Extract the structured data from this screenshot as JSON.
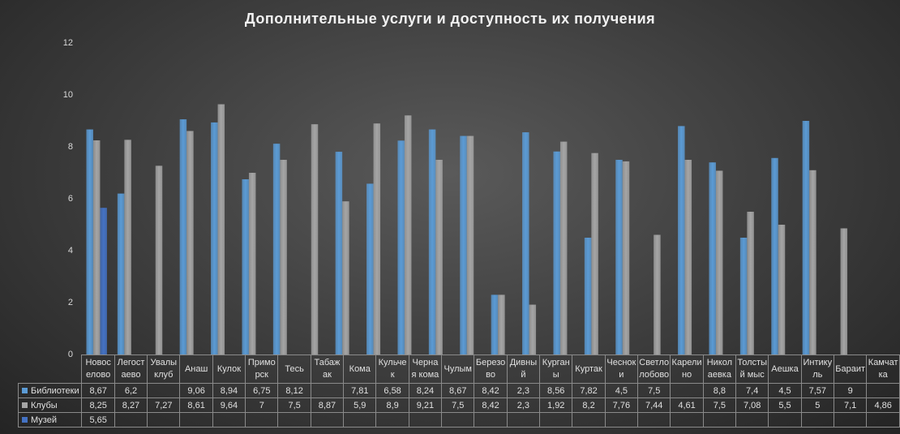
{
  "chart_data": {
    "type": "bar",
    "title": "Дополнительные  услуги и доступность их получения",
    "categories": [
      "Новоселово",
      "Легостаево",
      "Увалы клуб",
      "Анаш",
      "Кулок",
      "Приморск",
      "Тесь",
      "Табажак",
      "Кома",
      "Кульчек",
      "Черная кома",
      "Чулым",
      "Березово",
      "Дивный",
      "Курганы",
      "Куртак",
      "Чесноки",
      "Светлолобово",
      "Карелино",
      "Николаевка",
      "Толстый мыс",
      "Аешка",
      "Интикуль",
      "Бараит",
      "Камчатка"
    ],
    "series": [
      {
        "name": "Библиотеки",
        "color": "#5b9bd5",
        "values": [
          8.67,
          6.2,
          null,
          9.06,
          8.94,
          6.75,
          8.12,
          null,
          7.81,
          6.58,
          8.24,
          8.67,
          8.42,
          2.3,
          8.56,
          7.82,
          4.5,
          7.5,
          null,
          8.8,
          7.4,
          4.5,
          7.57,
          9,
          null
        ],
        "value_labels": [
          "8,67",
          "6,2",
          null,
          "9,06",
          "8,94",
          "6,75",
          "8,12",
          null,
          "7,81",
          "6,58",
          "8,24",
          "8,67",
          "8,42",
          "2,3",
          "8,56",
          "7,82",
          "4,5",
          "7,5",
          null,
          "8,8",
          "7,4",
          "4,5",
          "7,57",
          "9",
          null
        ]
      },
      {
        "name": "Клубы",
        "color": "#a5a5a5",
        "values": [
          8.25,
          8.27,
          7.27,
          8.61,
          9.64,
          7,
          7.5,
          8.87,
          5.9,
          8.9,
          9.21,
          7.5,
          8.42,
          2.3,
          1.92,
          8.2,
          7.76,
          7.44,
          4.61,
          7.5,
          7.08,
          5.5,
          5,
          7.1,
          4.86
        ],
        "value_labels": [
          "8,25",
          "8,27",
          "7,27",
          "8,61",
          "9,64",
          "7",
          "7,5",
          "8,87",
          "5,9",
          "8,9",
          "9,21",
          "7,5",
          "8,42",
          "2,3",
          "1,92",
          "8,2",
          "7,76",
          "7,44",
          "4,61",
          "7,5",
          "7,08",
          "5,5",
          "5",
          "7,1",
          "4,86"
        ]
      },
      {
        "name": "Музей",
        "color": "#4472c4",
        "values": [
          5.65,
          null,
          null,
          null,
          null,
          null,
          null,
          null,
          null,
          null,
          null,
          null,
          null,
          null,
          null,
          null,
          null,
          null,
          null,
          null,
          null,
          null,
          null,
          null,
          null
        ],
        "value_labels": [
          "5,65",
          null,
          null,
          null,
          null,
          null,
          null,
          null,
          null,
          null,
          null,
          null,
          null,
          null,
          null,
          null,
          null,
          null,
          null,
          null,
          null,
          null,
          null,
          null,
          null
        ]
      }
    ],
    "ylim": [
      0,
      12
    ],
    "yticks": [
      0,
      2,
      4,
      6,
      8,
      10,
      12
    ],
    "grid": false
  }
}
